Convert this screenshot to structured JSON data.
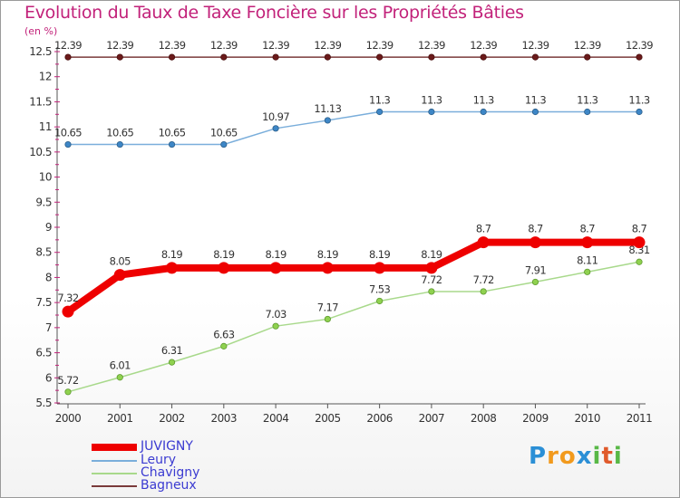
{
  "chart_data": {
    "type": "line",
    "title": "Evolution du Taux de Taxe Foncière sur les Propriétés Bâties",
    "ylabel": "(en %)",
    "xlabel": "",
    "x": [
      "2000",
      "2001",
      "2002",
      "2003",
      "2004",
      "2005",
      "2006",
      "2007",
      "2008",
      "2009",
      "2010",
      "2011"
    ],
    "ylim": [
      5.5,
      12.5
    ],
    "yticks": [
      "5.5",
      "6",
      "6.5",
      "7",
      "7.5",
      "8",
      "8.5",
      "9",
      "9.5",
      "10",
      "10.5",
      "11",
      "11.5",
      "12",
      "12.5"
    ],
    "grid": false,
    "legend_position": "bottom-left",
    "series": [
      {
        "name": "JUVIGNY",
        "color": "#ee0000",
        "values": [
          7.32,
          8.05,
          8.19,
          8.19,
          8.19,
          8.19,
          8.19,
          8.19,
          8.7,
          8.7,
          8.7,
          8.7
        ],
        "labels": [
          "7.32",
          "8.05",
          "8.19",
          "8.19",
          "8.19",
          "8.19",
          "8.19",
          "8.19",
          "8.7",
          "8.7",
          "8.7",
          "8.7"
        ]
      },
      {
        "name": "Leury",
        "color": "#7aaedb",
        "values": [
          10.65,
          10.65,
          10.65,
          10.65,
          10.97,
          11.13,
          11.3,
          11.3,
          11.3,
          11.3,
          11.3,
          11.3
        ],
        "labels": [
          "10.65",
          "10.65",
          "10.65",
          "10.65",
          "10.97",
          "11.13",
          "11.3",
          "11.3",
          "11.3",
          "11.3",
          "11.3",
          "11.3"
        ]
      },
      {
        "name": "Chavigny",
        "color": "#a8d98b",
        "values": [
          5.72,
          6.01,
          6.31,
          6.63,
          7.03,
          7.17,
          7.53,
          7.72,
          7.72,
          7.91,
          8.11,
          8.31
        ],
        "labels": [
          "5.72",
          "6.01",
          "6.31",
          "6.63",
          "7.03",
          "7.17",
          "7.53",
          "7.72",
          "7.72",
          "7.91",
          "8.11",
          "8.31"
        ]
      },
      {
        "name": "Bagneux",
        "color": "#7a3a3a",
        "values": [
          12.39,
          12.39,
          12.39,
          12.39,
          12.39,
          12.39,
          12.39,
          12.39,
          12.39,
          12.39,
          12.39,
          12.39
        ],
        "labels": [
          "12.39",
          "12.39",
          "12.39",
          "12.39",
          "12.39",
          "12.39",
          "12.39",
          "12.39",
          "12.39",
          "12.39",
          "12.39",
          "12.39"
        ]
      }
    ]
  },
  "brand": {
    "logo": [
      "P",
      "r",
      "o",
      "x",
      "i",
      "t",
      "i"
    ],
    "logo_colors": [
      "#2b8fd6",
      "#f29a1d",
      "#f29a1d",
      "#2b8fd6",
      "#59b847",
      "#e05a2b",
      "#59b847"
    ]
  }
}
